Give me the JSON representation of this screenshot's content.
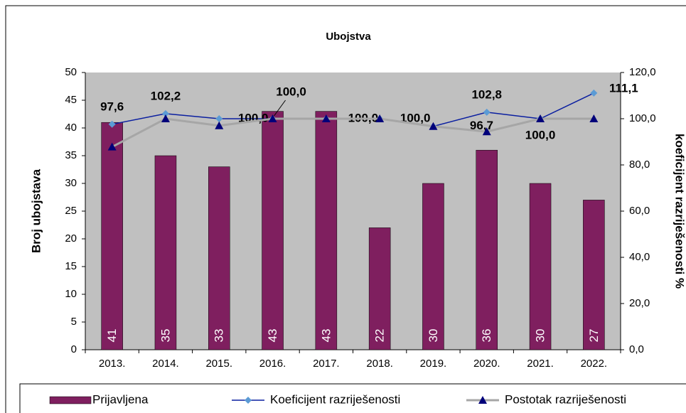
{
  "chart_data": {
    "type": "bar",
    "title": "Ubojstva",
    "y_label": "Broj ubojstava",
    "y2_label": "koeficijent razriješenosti %",
    "categories": [
      "2013.",
      "2014.",
      "2015.",
      "2016.",
      "2017.",
      "2018.",
      "2019.",
      "2020.",
      "2021.",
      "2022."
    ],
    "ylim": [
      0,
      50
    ],
    "yticks": [
      0,
      5,
      10,
      15,
      20,
      25,
      30,
      35,
      40,
      45,
      50
    ],
    "y2lim": [
      0,
      120
    ],
    "y2ticks": [
      {
        "value": 0,
        "label": "0,0"
      },
      {
        "value": 20,
        "label": "20,0"
      },
      {
        "value": 40,
        "label": "40,0"
      },
      {
        "value": 60,
        "label": "60,0"
      },
      {
        "value": 80,
        "label": "80,0"
      },
      {
        "value": 100,
        "label": "100,0"
      },
      {
        "value": 120,
        "label": "120,0"
      }
    ],
    "series": [
      {
        "name": "Prijavljena",
        "type": "bar",
        "color": "#7f1f5f",
        "values": [
          41,
          35,
          33,
          43,
          43,
          22,
          30,
          36,
          30,
          27
        ]
      },
      {
        "name": "Koeficijent razriješenosti",
        "type": "line",
        "axis": "y2",
        "color": "#0a1ea0",
        "marker_color": "#5b9bd5",
        "marker": "diamond",
        "values": [
          97.6,
          102.2,
          100.0,
          100.0,
          100.0,
          100.0,
          96.7,
          102.8,
          100.0,
          111.1
        ],
        "value_labels": [
          "97,6",
          "102,2",
          "100,0",
          "100,0",
          "100,0",
          "100,0",
          "96,7",
          "102,8",
          "100,0",
          "111,1"
        ]
      },
      {
        "name": "Postotak razriješenosti",
        "type": "line",
        "axis": "y2",
        "color": "#a6a6a6",
        "marker_color": "#00007a",
        "marker": "triangle",
        "values": [
          87.8,
          100,
          97,
          100,
          100,
          100,
          96.7,
          94.4,
          100,
          100
        ]
      }
    ]
  }
}
